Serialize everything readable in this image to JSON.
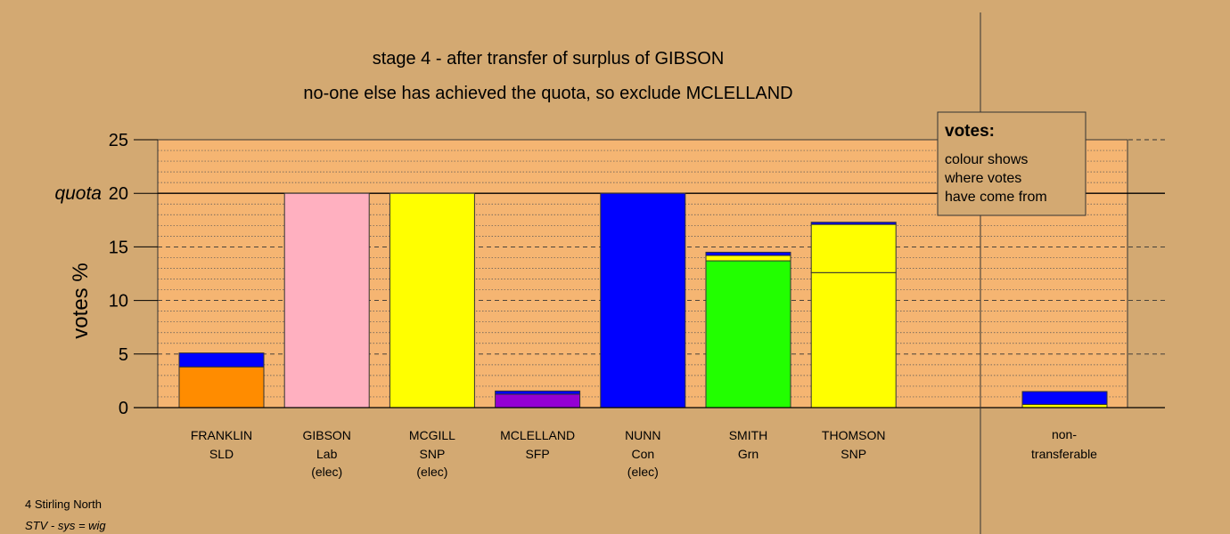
{
  "chart_data": {
    "type": "bar",
    "title_line1": "stage 4 - after transfer of surplus of GIBSON",
    "title_line2": "no-one else has achieved the quota, so exclude MCLELLAND",
    "ylabel": "votes %",
    "ylim": [
      0,
      25
    ],
    "yticks": [
      "0",
      "5",
      "10",
      "15",
      "20",
      "25"
    ],
    "quota_label": "quota",
    "quota_value": 20,
    "grid": "dashed every 5, dotted every 1",
    "legend": {
      "title": "votes:",
      "lines": [
        "colour shows",
        "where votes",
        "have come from"
      ],
      "placement": "top-right"
    },
    "candidates": [
      {
        "name": "FRANKLIN",
        "party": "SLD",
        "status": "",
        "segments": [
          {
            "color": "#FF8C00",
            "value": 3.8
          },
          {
            "color": "#0000FF",
            "value": 1.3
          }
        ]
      },
      {
        "name": "GIBSON",
        "party": "Lab",
        "status": "(elec)",
        "segments": [
          {
            "color": "#FFB0C0",
            "value": 20
          }
        ]
      },
      {
        "name": "MCGILL",
        "party": "SNP",
        "status": "(elec)",
        "segments": [
          {
            "color": "#FFFF00",
            "value": 20
          }
        ]
      },
      {
        "name": "MCLELLAND",
        "party": "SFP",
        "status": "",
        "segments": [
          {
            "color": "#9400D3",
            "value": 1.25
          },
          {
            "color": "#0000FF",
            "value": 0.3
          }
        ]
      },
      {
        "name": "NUNN",
        "party": "Con",
        "status": "(elec)",
        "segments": [
          {
            "color": "#0000FF",
            "value": 20
          }
        ]
      },
      {
        "name": "SMITH",
        "party": "Grn",
        "status": "",
        "segments": [
          {
            "color": "#22FF00",
            "value": 13.7
          },
          {
            "color": "#FFFF00",
            "value": 0.5
          },
          {
            "color": "#0000FF",
            "value": 0.3
          }
        ]
      },
      {
        "name": "THOMSON",
        "party": "SNP",
        "status": "",
        "segments": [
          {
            "color": "#FFFF00",
            "value": 12.6
          },
          {
            "color": "#FFFF00",
            "value": 4.5
          },
          {
            "color": "#0000FF",
            "value": 0.2
          }
        ]
      }
    ],
    "nontransferable": {
      "label1": "non-",
      "label2": "transferable",
      "segments": [
        {
          "color": "#FFFF00",
          "value": 0.3
        },
        {
          "color": "#0000FF",
          "value": 1.2
        }
      ]
    }
  },
  "footer": {
    "constituency": "4 Stirling North",
    "system": "STV - sys = wig"
  },
  "colors": {
    "background": "#D3A972",
    "plot_bg": "#F5B572"
  }
}
